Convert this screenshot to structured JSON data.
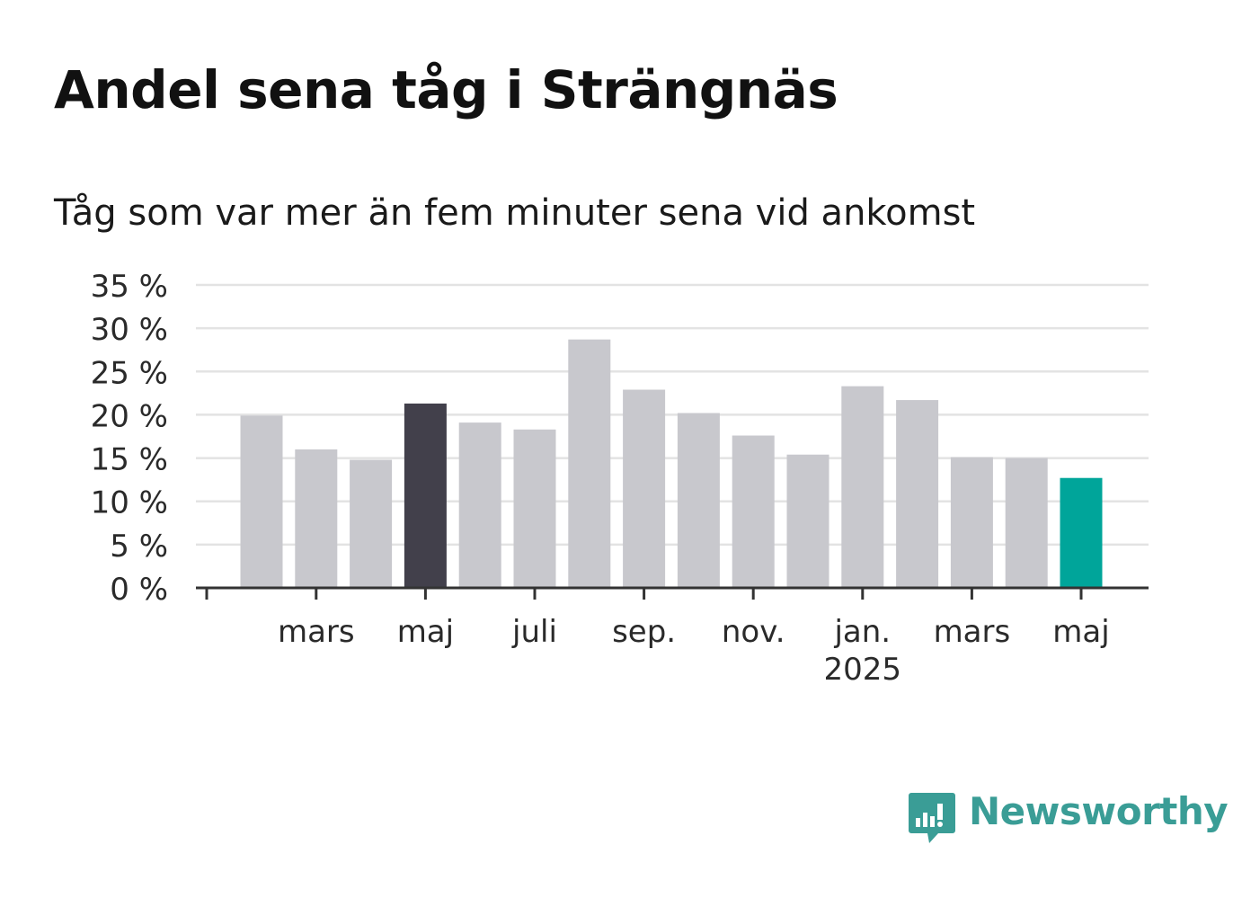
{
  "title": "Andel sena tåg i Strängnäs",
  "subtitle": "Tåg som var mer än fem minuter sena vid ankomst",
  "brand": "Newsworthy",
  "colors": {
    "bar_default": "#c8c8cd",
    "bar_highlight_dark": "#42404b",
    "bar_highlight_accent": "#00a59a",
    "gridline": "#e3e3e3",
    "axis": "#333333",
    "brand": "#3a9d96"
  },
  "chart_data": {
    "type": "bar",
    "title": "Andel sena tåg i Strängnäs",
    "subtitle": "Tåg som var mer än fem minuter sena vid ankomst",
    "ylim": [
      0,
      35
    ],
    "y_ticks": [
      0,
      5,
      10,
      15,
      20,
      25,
      30,
      35
    ],
    "y_tick_labels": [
      "0 %",
      "5 %",
      "10 %",
      "15 %",
      "20 %",
      "25 %",
      "30 %",
      "35 %"
    ],
    "x_tick_labels": [
      {
        "label": "mars",
        "sub": "",
        "index": 1
      },
      {
        "label": "maj",
        "sub": "",
        "index": 3
      },
      {
        "label": "juli",
        "sub": "",
        "index": 5
      },
      {
        "label": "sep.",
        "sub": "",
        "index": 7
      },
      {
        "label": "nov.",
        "sub": "",
        "index": 9
      },
      {
        "label": "jan.",
        "sub": "2025",
        "index": 11
      },
      {
        "label": "mars",
        "sub": "",
        "index": 13
      },
      {
        "label": "maj",
        "sub": "",
        "index": 15
      }
    ],
    "categories": [
      "2024-02",
      "2024-03",
      "2024-04",
      "2024-05",
      "2024-06",
      "2024-07",
      "2024-08",
      "2024-09",
      "2024-10",
      "2024-11",
      "2024-12",
      "2025-01",
      "2025-02",
      "2025-03",
      "2025-04",
      "2025-05"
    ],
    "values": [
      19.9,
      16.0,
      14.8,
      21.3,
      19.1,
      18.3,
      28.7,
      22.9,
      20.2,
      17.6,
      15.4,
      23.3,
      21.7,
      15.1,
      15.0,
      12.7
    ],
    "highlight": {
      "dark": 3,
      "accent": 15
    },
    "grid": true
  }
}
